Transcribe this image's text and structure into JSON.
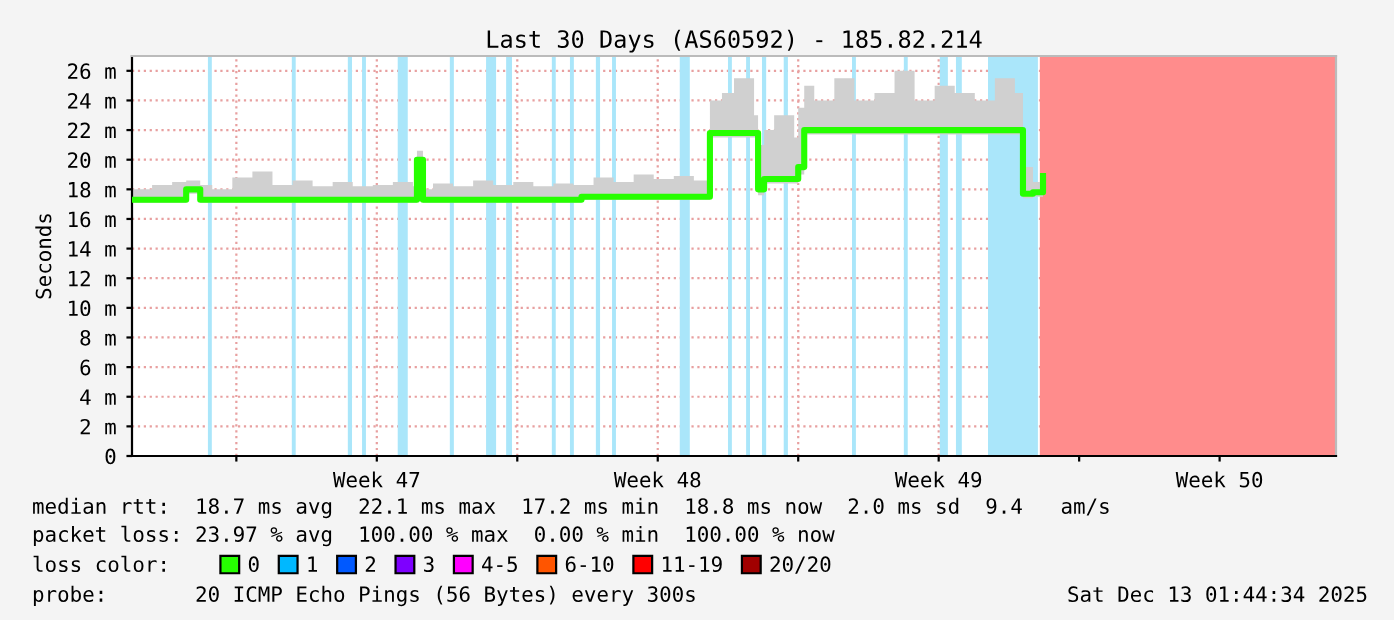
{
  "chart_data": {
    "type": "step",
    "title": "Last 30 Days (AS60592) - 185.82.214",
    "ylabel": "Seconds",
    "xlim": [
      "2025-11-13T09:36",
      "2025-12-13T09:36"
    ],
    "xticks": [
      {
        "value": "2025-11-16T00:00",
        "label": null
      },
      {
        "value": "2025-11-19T12:00",
        "label": "Week 47"
      },
      {
        "value": "2025-11-23T00:00",
        "label": null
      },
      {
        "value": "2025-11-26T12:00",
        "label": "Week 48"
      },
      {
        "value": "2025-11-30T00:00",
        "label": null
      },
      {
        "value": "2025-12-03T12:00",
        "label": "Week 49"
      },
      {
        "value": "2025-12-07T00:00",
        "label": null
      },
      {
        "value": "2025-12-10T12:00",
        "label": "Week 50"
      }
    ],
    "ylim": [
      0,
      27
    ],
    "yticks": [
      {
        "value": 0,
        "label": "0"
      },
      {
        "value": 2,
        "label": "2 m"
      },
      {
        "value": 4,
        "label": "4 m"
      },
      {
        "value": 6,
        "label": "6 m"
      },
      {
        "value": 8,
        "label": "8 m"
      },
      {
        "value": 10,
        "label": "10 m"
      },
      {
        "value": 12,
        "label": "12 m"
      },
      {
        "value": 14,
        "label": "14 m"
      },
      {
        "value": 16,
        "label": "16 m"
      },
      {
        "value": 18,
        "label": "18 m"
      },
      {
        "value": 20,
        "label": "20 m"
      },
      {
        "value": 22,
        "label": "22 m"
      },
      {
        "value": 24,
        "label": "24 m"
      },
      {
        "value": 26,
        "label": "26 m"
      }
    ],
    "grid": true,
    "legend": "bottom",
    "legend_title": "loss color:",
    "line_style": "solid",
    "series": [
      {
        "name": "0",
        "color": "#26ff00",
        "x": [
          "2025-11-13T09:36",
          "2025-11-13T21:36",
          "2025-11-14T09:36",
          "2025-11-14T18:00",
          "2025-11-15T02:24",
          "2025-11-15T09:36",
          "2025-11-15T21:36",
          "2025-11-16T09:36",
          "2025-11-16T21:36",
          "2025-11-17T09:36",
          "2025-11-17T21:36",
          "2025-11-18T09:36",
          "2025-11-18T21:36",
          "2025-11-19T09:36",
          "2025-11-19T21:36",
          "2025-11-20T09:36",
          "2025-11-20T12:00",
          "2025-11-20T15:36",
          "2025-11-20T21:36",
          "2025-11-21T09:36",
          "2025-11-21T21:36",
          "2025-11-22T09:36",
          "2025-11-22T21:36",
          "2025-11-23T09:36",
          "2025-11-23T21:36",
          "2025-11-24T09:36",
          "2025-11-24T14:24",
          "2025-11-24T21:36",
          "2025-11-25T09:36",
          "2025-11-25T21:36",
          "2025-11-26T09:36",
          "2025-11-26T21:36",
          "2025-11-27T09:36",
          "2025-11-27T19:12",
          "2025-11-28T02:24",
          "2025-11-28T09:36",
          "2025-11-28T21:36",
          "2025-11-29T00:00",
          "2025-11-29T03:36",
          "2025-11-29T09:36",
          "2025-11-29T21:36",
          "2025-11-30T00:00",
          "2025-11-30T03:36",
          "2025-11-30T09:36",
          "2025-11-30T21:36",
          "2025-12-01T09:36",
          "2025-12-01T21:36",
          "2025-12-02T09:36",
          "2025-12-02T21:36",
          "2025-12-03T09:36",
          "2025-12-03T21:36",
          "2025-12-04T09:36",
          "2025-12-04T21:36",
          "2025-12-05T09:36",
          "2025-12-05T14:24",
          "2025-12-05T20:24",
          "2025-12-06T02:24"
        ],
        "values": [
          17.3,
          17.3,
          17.3,
          18.0,
          17.3,
          17.3,
          17.3,
          17.3,
          17.3,
          17.3,
          17.3,
          17.3,
          17.3,
          17.3,
          17.3,
          17.3,
          20.0,
          17.3,
          17.3,
          17.3,
          17.3,
          17.3,
          17.3,
          17.3,
          17.3,
          17.3,
          17.5,
          17.5,
          17.5,
          17.5,
          17.5,
          17.5,
          17.5,
          21.8,
          21.8,
          21.8,
          21.8,
          18.0,
          18.7,
          18.7,
          18.7,
          19.5,
          22.0,
          22.0,
          22.0,
          22.0,
          22.0,
          22.0,
          22.0,
          22.0,
          22.0,
          22.0,
          22.0,
          22.0,
          17.7,
          17.8,
          18.9
        ],
        "lower": [
          17.1,
          17.1,
          17.1,
          17.7,
          17.1,
          17.1,
          17.1,
          17.1,
          17.1,
          17.1,
          17.1,
          17.1,
          17.1,
          17.1,
          17.1,
          17.1,
          19.5,
          17.1,
          17.1,
          17.1,
          17.1,
          17.1,
          17.1,
          17.1,
          17.1,
          17.1,
          17.3,
          17.3,
          17.3,
          17.3,
          17.3,
          17.3,
          17.3,
          21.5,
          21.5,
          21.5,
          21.5,
          17.6,
          18.4,
          18.4,
          18.4,
          19.0,
          21.7,
          21.7,
          21.7,
          21.7,
          21.7,
          21.7,
          21.7,
          21.7,
          21.7,
          21.7,
          21.7,
          21.7,
          17.4,
          17.5,
          18.6
        ],
        "upper": [
          18.0,
          18.3,
          18.5,
          18.6,
          18.3,
          18.0,
          18.8,
          19.2,
          18.3,
          18.6,
          18.2,
          18.5,
          18.2,
          18.3,
          18.5,
          18.2,
          20.6,
          18.0,
          18.4,
          18.2,
          18.6,
          18.3,
          18.5,
          18.2,
          18.4,
          18.3,
          18.3,
          18.8,
          18.5,
          19.0,
          18.7,
          18.9,
          18.6,
          24.0,
          24.5,
          25.5,
          23.0,
          21.0,
          22.0,
          23.0,
          21.5,
          23.5,
          25.0,
          24.0,
          25.5,
          24.0,
          24.5,
          26.0,
          24.0,
          25.0,
          24.5,
          24.0,
          25.5,
          24.5,
          19.5,
          18.5,
          19.8
        ]
      },
      {
        "name": "1",
        "color": "#00b8ff"
      },
      {
        "name": "2",
        "color": "#0059ff"
      },
      {
        "name": "3",
        "color": "#7e00ff"
      },
      {
        "name": "4-5",
        "color": "#ff00ff"
      },
      {
        "name": "6-10",
        "color": "#ff5500"
      },
      {
        "name": "11-19",
        "color": "#ff0000"
      },
      {
        "name": "20/20",
        "color": "#a10000"
      }
    ],
    "bands": [
      {
        "axis": "x",
        "from": "2025-11-15T07:00",
        "to": "2025-11-15T09:20",
        "color": "#aae6fa"
      },
      {
        "axis": "x",
        "from": "2025-11-17T09:10",
        "to": "2025-11-17T11:30",
        "color": "#aae6fa"
      },
      {
        "axis": "x",
        "from": "2025-11-18T18:40",
        "to": "2025-11-18T21:10",
        "color": "#aae6fa"
      },
      {
        "axis": "x",
        "from": "2025-11-19T03:10",
        "to": "2025-11-19T05:30",
        "color": "#aae6fa"
      },
      {
        "axis": "x",
        "from": "2025-11-20T00:30",
        "to": "2025-11-20T06:30",
        "color": "#aae6fa"
      },
      {
        "axis": "x",
        "from": "2025-11-21T07:40",
        "to": "2025-11-21T10:05",
        "color": "#aae6fa"
      },
      {
        "axis": "x",
        "from": "2025-11-22T05:20",
        "to": "2025-11-22T11:20",
        "color": "#aae6fa"
      },
      {
        "axis": "x",
        "from": "2025-11-22T17:20",
        "to": "2025-11-22T20:50",
        "color": "#aae6fa"
      },
      {
        "axis": "x",
        "from": "2025-11-23T20:40",
        "to": "2025-11-23T23:00",
        "color": "#aae6fa"
      },
      {
        "axis": "x",
        "from": "2025-11-24T07:30",
        "to": "2025-11-24T09:50",
        "color": "#aae6fa"
      },
      {
        "axis": "x",
        "from": "2025-11-24T23:00",
        "to": "2025-11-25T01:30",
        "color": "#aae6fa"
      },
      {
        "axis": "x",
        "from": "2025-11-25T08:40",
        "to": "2025-11-25T11:00",
        "color": "#aae6fa"
      },
      {
        "axis": "x",
        "from": "2025-11-27T01:10",
        "to": "2025-11-27T07:10",
        "color": "#aae6fa"
      },
      {
        "axis": "x",
        "from": "2025-11-28T06:00",
        "to": "2025-11-28T08:20",
        "color": "#aae6fa"
      },
      {
        "axis": "x",
        "from": "2025-11-28T16:50",
        "to": "2025-11-28T19:10",
        "color": "#aae6fa"
      },
      {
        "axis": "x",
        "from": "2025-11-29T02:20",
        "to": "2025-11-29T04:50",
        "color": "#aae6fa"
      },
      {
        "axis": "x",
        "from": "2025-11-29T15:20",
        "to": "2025-11-29T17:50",
        "color": "#aae6fa"
      },
      {
        "axis": "x",
        "from": "2025-12-01T08:10",
        "to": "2025-12-01T10:30",
        "color": "#aae6fa"
      },
      {
        "axis": "x",
        "from": "2025-12-02T15:10",
        "to": "2025-12-02T17:30",
        "color": "#aae6fa"
      },
      {
        "axis": "x",
        "from": "2025-12-03T12:40",
        "to": "2025-12-03T17:30",
        "color": "#aae6fa"
      },
      {
        "axis": "x",
        "from": "2025-12-03T22:20",
        "to": "2025-12-04T01:50",
        "color": "#aae6fa"
      },
      {
        "axis": "x",
        "from": "2025-12-04T17:30",
        "to": "2025-12-05T23:20",
        "color": "#aae6fa"
      },
      {
        "axis": "x",
        "from": "2025-12-06T00:30",
        "to": "2025-12-13T09:36",
        "color": "#ff8c8c"
      }
    ],
    "annotations": [
      "median rtt:  18.7 ms avg  22.1 ms max  17.2 ms min  18.8 ms now  2.0 ms sd  9.4   am/s",
      "packet loss: 23.97 % avg  100.00 % max  0.00 % min  100.00 % now",
      "probe:       20 ICMP Echo Pings (56 Bytes) every 300s",
      "Sat Dec 13 01:44:34 2025"
    ]
  }
}
